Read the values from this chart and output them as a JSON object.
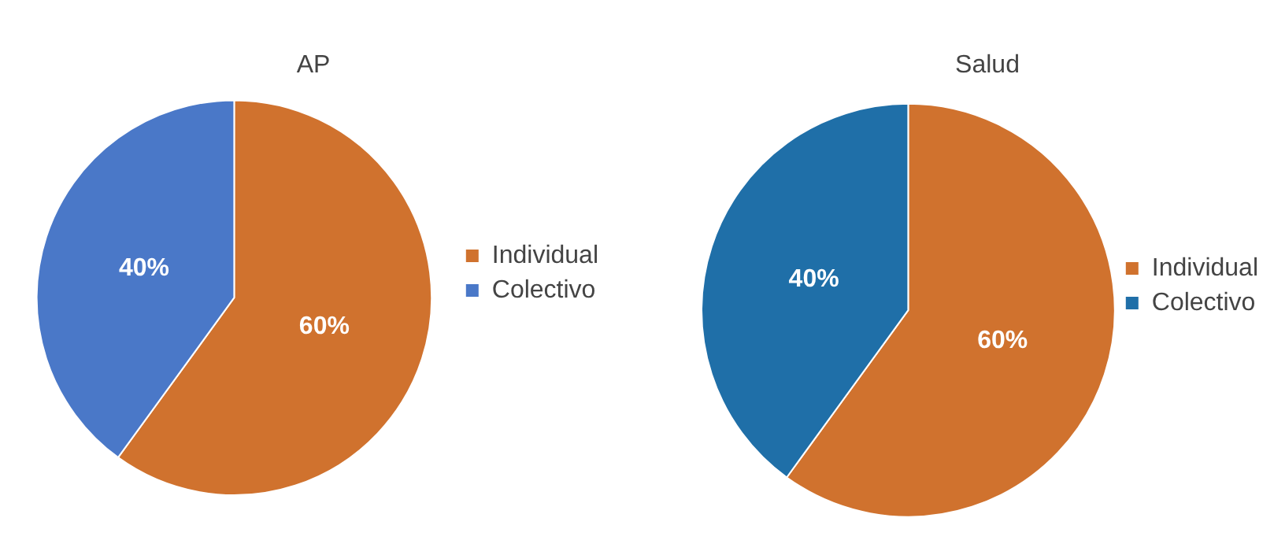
{
  "chart_data": [
    {
      "type": "pie",
      "title": "AP",
      "categories": [
        "Individual",
        "Colectivo"
      ],
      "values": [
        60,
        40
      ],
      "colors": [
        "#d0722e",
        "#4a78c8"
      ],
      "value_labels": [
        "60%",
        "40%"
      ],
      "legend": "right"
    },
    {
      "type": "pie",
      "title": "Salud",
      "categories": [
        "Individual",
        "Colectivo"
      ],
      "values": [
        60,
        40
      ],
      "colors": [
        "#d0722e",
        "#1f6fa8"
      ],
      "value_labels": [
        "60%",
        "40%"
      ],
      "legend": "right"
    }
  ]
}
